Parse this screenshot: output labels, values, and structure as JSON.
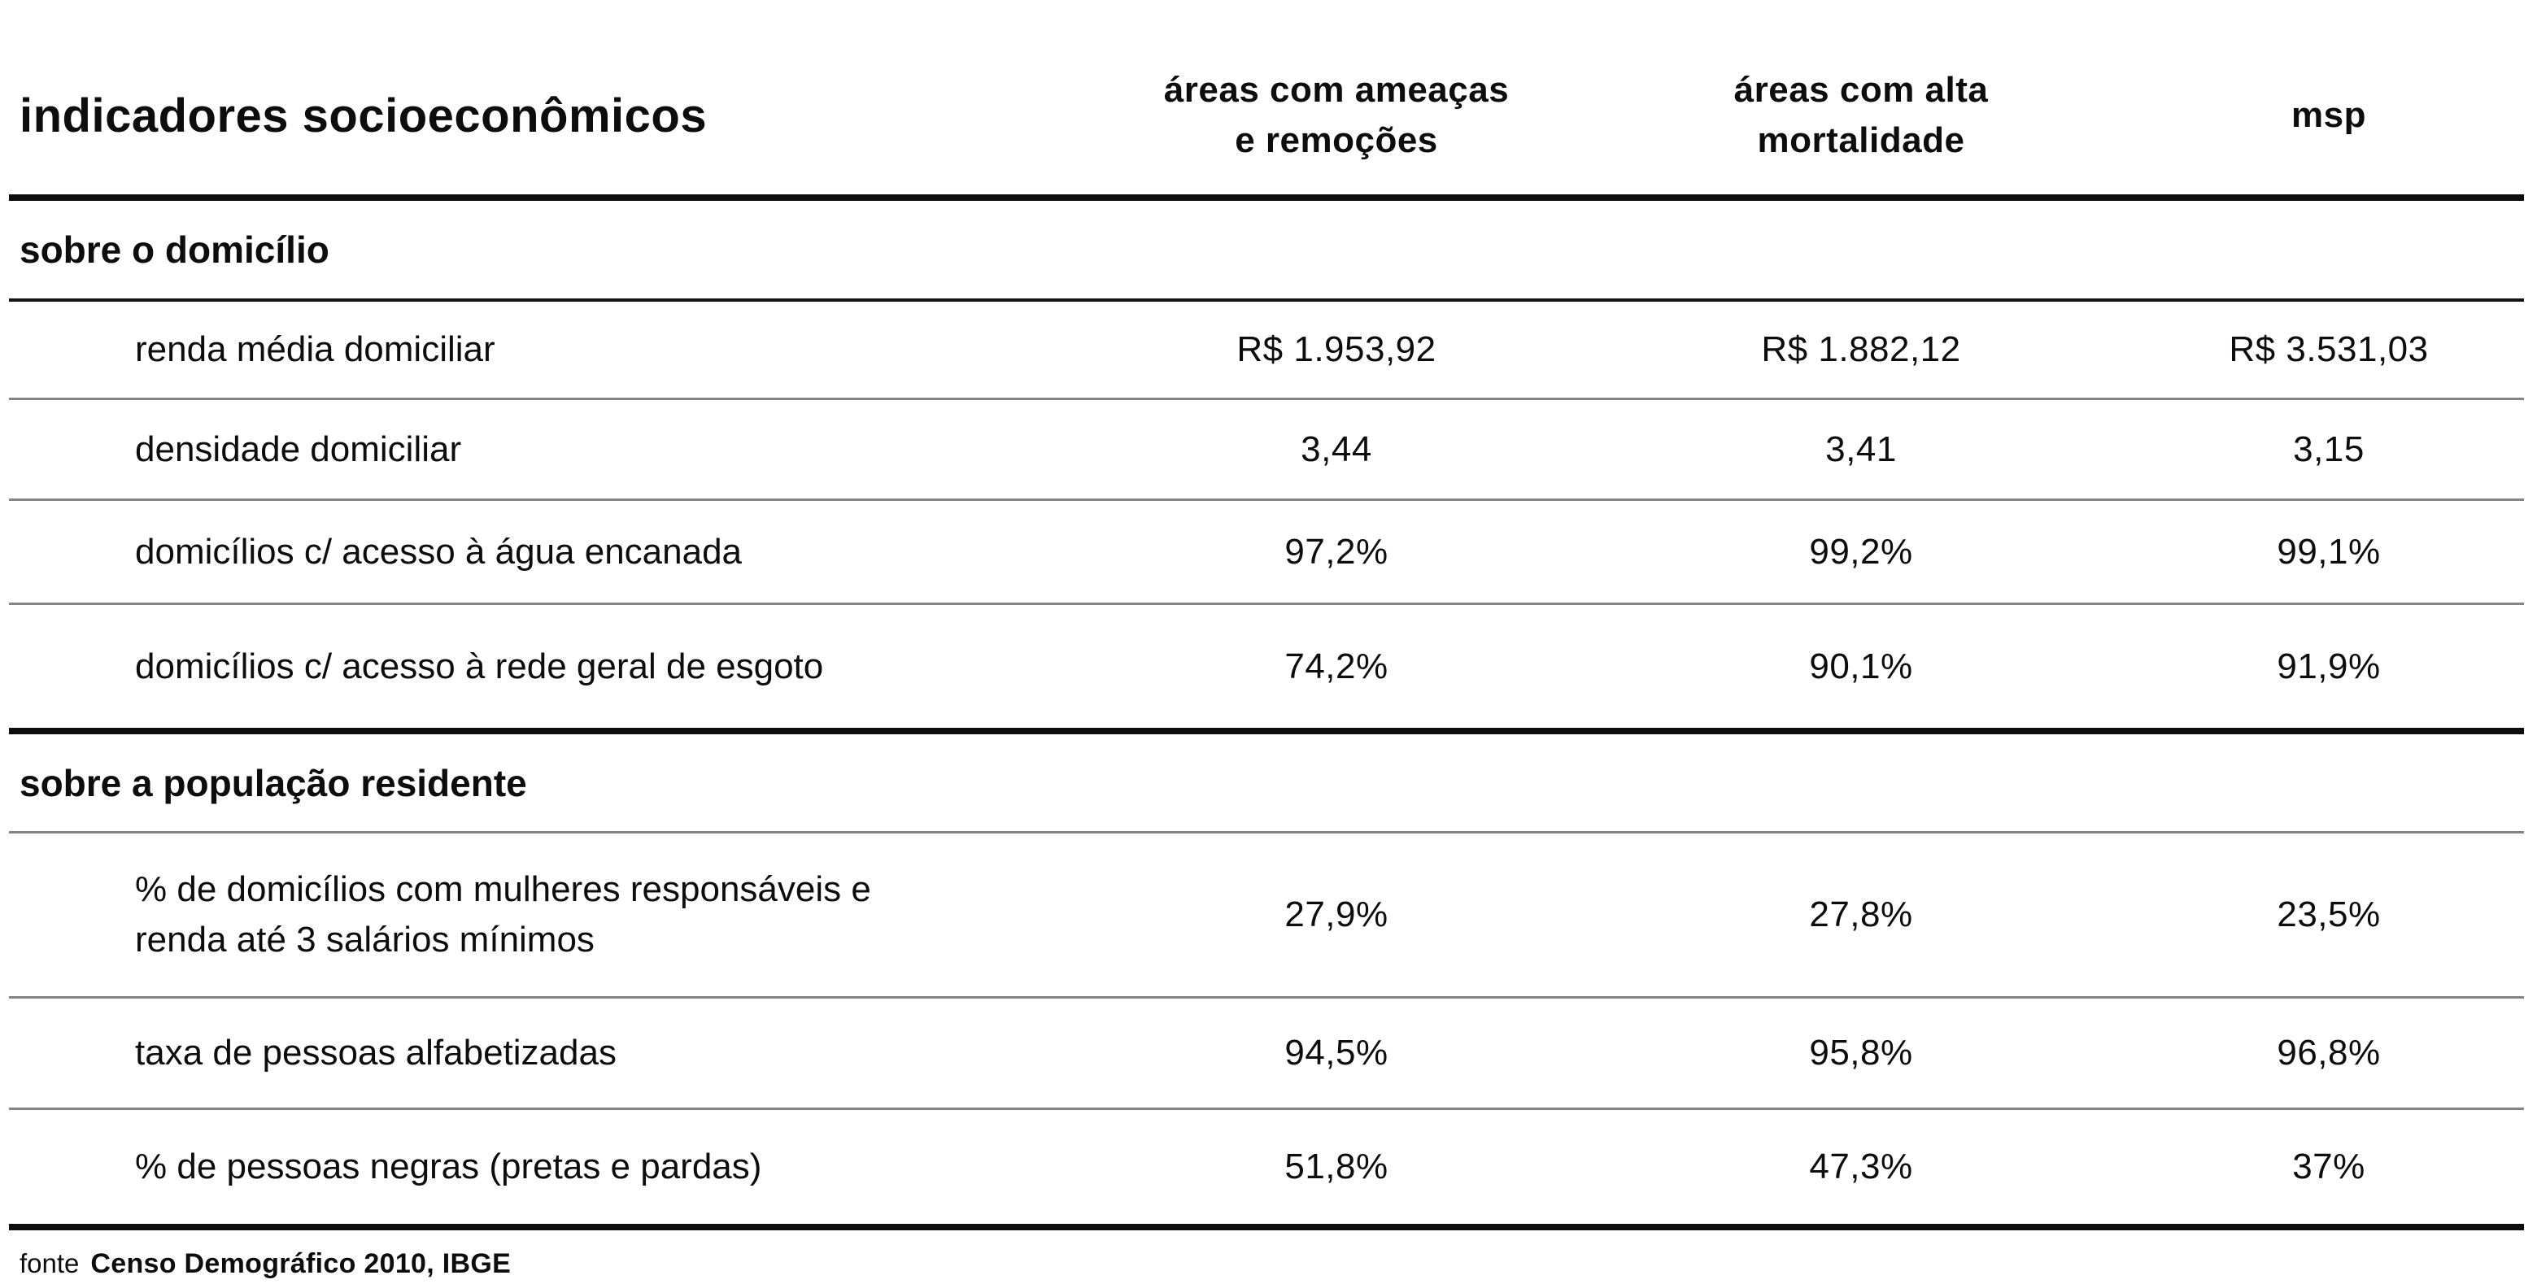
{
  "colors": {
    "background": "#ffffff",
    "text": "#0d0d0d",
    "rule_thick": "#0d0d0d",
    "rule_section": "#141414",
    "rule_row": "#848484"
  },
  "chart_data": {
    "type": "table",
    "title": "indicadores socioeconômicos",
    "columns": [
      "áreas com ameaças\ne remoções",
      "áreas com alta\nmortalidade",
      "msp"
    ],
    "sections": [
      {
        "header": "sobre o domicílio",
        "rows": [
          {
            "label": "renda média domiciliar",
            "values": [
              "R$ 1.953,92",
              "R$ 1.882,12",
              "R$ 3.531,03"
            ]
          },
          {
            "label": "densidade domiciliar",
            "values": [
              "3,44",
              "3,41",
              "3,15"
            ]
          },
          {
            "label": "domicílios c/ acesso à água encanada",
            "values": [
              "97,2%",
              "99,2%",
              "99,1%"
            ]
          },
          {
            "label": "domicílios c/ acesso à rede geral de esgoto",
            "values": [
              "74,2%",
              "90,1%",
              "91,9%"
            ]
          }
        ]
      },
      {
        "header": "sobre a população residente",
        "rows": [
          {
            "label": "% de domicílios com mulheres responsáveis e\nrenda até 3 salários mínimos",
            "values": [
              "27,9%",
              "27,8%",
              "23,5%"
            ]
          },
          {
            "label": "taxa de pessoas alfabetizadas",
            "values": [
              "94,5%",
              "95,8%",
              "96,8%"
            ]
          },
          {
            "label": "% de pessoas negras (pretas e pardas)",
            "values": [
              "51,8%",
              "47,3%",
              "37%"
            ]
          }
        ]
      }
    ],
    "source_prefix": "fonte",
    "source": "Censo Demográfico 2010, IBGE"
  }
}
